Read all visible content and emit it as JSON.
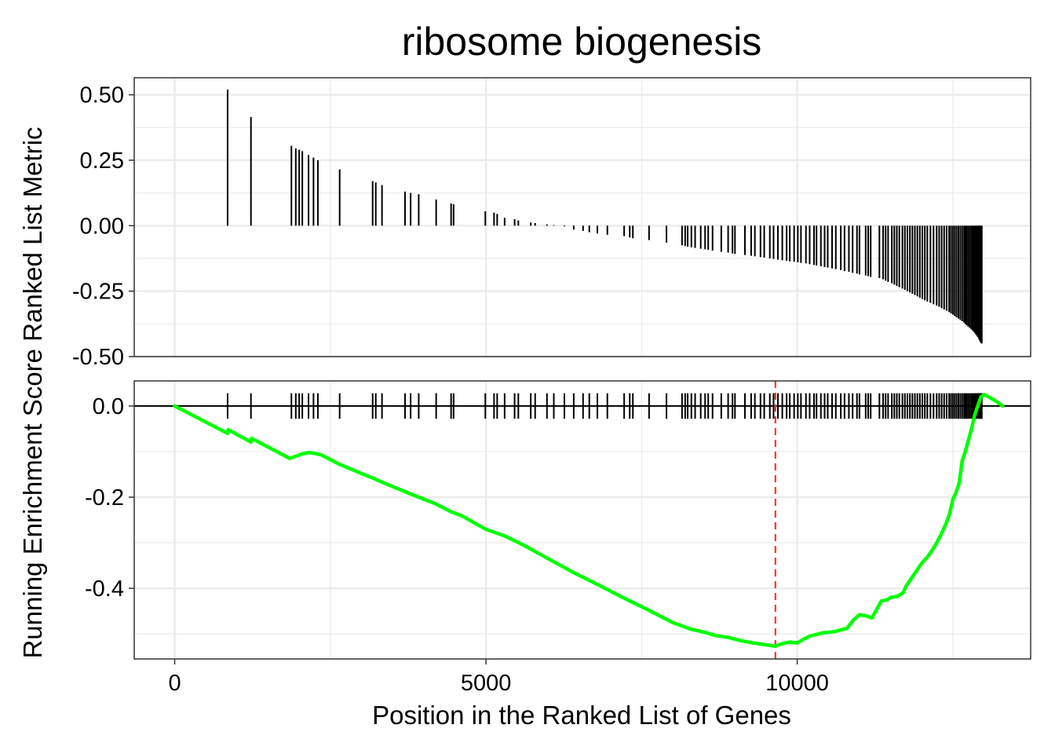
{
  "chart_data": {
    "type": "line",
    "title": "ribosome biogenesis",
    "xlabel": "Position in the Ranked List of Genes",
    "ylabel": "Running Enrichment Score Ranked List Metric",
    "grid": true,
    "x_ticks": [
      "0",
      "5000",
      "10000"
    ],
    "x_tick_values": [
      0,
      5000,
      10000
    ],
    "xlim": [
      -650,
      13750
    ],
    "colors": {
      "running_score": "#00ff00",
      "hits": "#000000",
      "peak_line": "#ff3333",
      "grid": "#ebebeb",
      "panel_border": "#333333"
    },
    "panels": [
      {
        "name": "ranked_list_metric",
        "ylim": [
          -0.5,
          0.565
        ],
        "y_ticks": [
          "0.50",
          "0.25",
          "0.00",
          "-0.25",
          "-0.50"
        ],
        "y_tick_values": [
          0.5,
          0.25,
          0.0,
          -0.25,
          -0.5
        ],
        "bars": {
          "x": [
            850,
            1225,
            1875,
            1945,
            2000,
            2050,
            2150,
            2230,
            2300,
            2650,
            3180,
            3230,
            3330,
            3700,
            3790,
            3920,
            4200,
            4440,
            4480,
            4990,
            5130,
            5180,
            5300,
            5460,
            5520,
            5720,
            5790,
            5980,
            6090,
            6260,
            6410,
            6560,
            6660,
            6790,
            6950,
            7220,
            7310,
            7360,
            7620,
            7900,
            8150,
            8200,
            8240,
            8300,
            8360,
            8450,
            8520,
            8570,
            8640,
            8780,
            8890,
            8960,
            9000,
            9160,
            9260,
            9320,
            9410,
            9470,
            9560,
            9620,
            9690,
            9760,
            9830,
            9880,
            9950,
            10010,
            10060,
            10140,
            10200,
            10270,
            10310,
            10380,
            10440,
            10490,
            10560,
            10620,
            10700,
            10760,
            10830,
            10890,
            10960,
            11000,
            11100,
            11140,
            11180,
            11320,
            11380,
            11420,
            11460,
            11520,
            11560,
            11600,
            11640,
            11690,
            11730,
            11770,
            11810,
            11850,
            11890,
            11930,
            11970,
            12010,
            12050,
            12090,
            12140,
            12190,
            12240,
            12280,
            12320,
            12360,
            12400,
            12440,
            12470,
            12500,
            12530,
            12560,
            12590,
            12620,
            12650,
            12680,
            12700,
            12720,
            12745,
            12770,
            12795,
            12815,
            12835,
            12855,
            12870,
            12885,
            12900,
            12915,
            12925,
            12935,
            12945,
            12955,
            12965
          ],
          "values": [
            0.52,
            0.415,
            0.305,
            0.295,
            0.29,
            0.285,
            0.27,
            0.26,
            0.25,
            0.215,
            0.17,
            0.165,
            0.155,
            0.13,
            0.125,
            0.12,
            0.1,
            0.085,
            0.082,
            0.055,
            0.05,
            0.045,
            0.03,
            0.025,
            0.02,
            0.012,
            0.01,
            0.005,
            0.002,
            -0.003,
            -0.015,
            -0.02,
            -0.025,
            -0.03,
            -0.035,
            -0.04,
            -0.045,
            -0.048,
            -0.055,
            -0.065,
            -0.075,
            -0.078,
            -0.08,
            -0.083,
            -0.085,
            -0.088,
            -0.09,
            -0.092,
            -0.095,
            -0.1,
            -0.103,
            -0.106,
            -0.108,
            -0.112,
            -0.115,
            -0.117,
            -0.12,
            -0.122,
            -0.125,
            -0.127,
            -0.13,
            -0.132,
            -0.134,
            -0.136,
            -0.138,
            -0.14,
            -0.142,
            -0.144,
            -0.147,
            -0.15,
            -0.152,
            -0.155,
            -0.158,
            -0.16,
            -0.163,
            -0.166,
            -0.17,
            -0.173,
            -0.176,
            -0.18,
            -0.183,
            -0.186,
            -0.19,
            -0.193,
            -0.196,
            -0.2,
            -0.205,
            -0.21,
            -0.215,
            -0.22,
            -0.225,
            -0.23,
            -0.235,
            -0.24,
            -0.245,
            -0.25,
            -0.255,
            -0.26,
            -0.265,
            -0.27,
            -0.275,
            -0.28,
            -0.285,
            -0.29,
            -0.295,
            -0.3,
            -0.305,
            -0.31,
            -0.315,
            -0.32,
            -0.325,
            -0.33,
            -0.335,
            -0.34,
            -0.345,
            -0.35,
            -0.355,
            -0.36,
            -0.365,
            -0.37,
            -0.375,
            -0.38,
            -0.385,
            -0.39,
            -0.395,
            -0.4,
            -0.405,
            -0.41,
            -0.415,
            -0.42,
            -0.425,
            -0.43,
            -0.435,
            -0.44,
            -0.445,
            -0.448,
            -0.45
          ]
        }
      },
      {
        "name": "running_enrichment_score",
        "ylim": [
          -0.555,
          0.055
        ],
        "y_ticks": [
          "0.0",
          "-0.2",
          "-0.4"
        ],
        "y_tick_values": [
          0.0,
          -0.2,
          -0.4
        ],
        "peak_x": 9650,
        "series": [
          {
            "x": [
              0,
              850,
              860,
              1225,
              1235,
              1850,
              1950,
              2050,
              2150,
              2250,
              2350,
              2650,
              3000,
              3180,
              3330,
              3700,
              3920,
              4200,
              4440,
              4600,
              4990,
              5300,
              5600,
              6000,
              6400,
              6800,
              7200,
              7600,
              8000,
              8300,
              8500,
              8700,
              8900,
              9100,
              9300,
              9450,
              9600,
              9650,
              9700,
              9800,
              9900,
              10000,
              10100,
              10200,
              10400,
              10600,
              10800,
              10900,
              11000,
              11100,
              11200,
              11350,
              11450,
              11500,
              11600,
              11700,
              11750,
              11800,
              11900,
              12000,
              12100,
              12200,
              12300,
              12400,
              12450,
              12500,
              12550,
              12600,
              12650,
              12700,
              12750,
              12800,
              12850,
              12900,
              12950,
              13000,
              13050,
              13100,
              13200,
              13300
            ],
            "y": [
              0.0,
              -0.06,
              -0.052,
              -0.079,
              -0.071,
              -0.115,
              -0.11,
              -0.105,
              -0.102,
              -0.104,
              -0.107,
              -0.128,
              -0.148,
              -0.158,
              -0.167,
              -0.188,
              -0.2,
              -0.215,
              -0.232,
              -0.24,
              -0.27,
              -0.285,
              -0.305,
              -0.335,
              -0.365,
              -0.392,
              -0.42,
              -0.447,
              -0.475,
              -0.49,
              -0.496,
              -0.504,
              -0.508,
              -0.515,
              -0.52,
              -0.523,
              -0.526,
              -0.527,
              -0.524,
              -0.52,
              -0.518,
              -0.52,
              -0.512,
              -0.505,
              -0.498,
              -0.495,
              -0.488,
              -0.47,
              -0.458,
              -0.46,
              -0.465,
              -0.428,
              -0.425,
              -0.42,
              -0.418,
              -0.41,
              -0.395,
              -0.385,
              -0.365,
              -0.345,
              -0.33,
              -0.31,
              -0.285,
              -0.255,
              -0.235,
              -0.205,
              -0.19,
              -0.17,
              -0.12,
              -0.1,
              -0.075,
              -0.05,
              -0.02,
              0.0,
              0.02,
              0.025,
              0.022,
              0.018,
              0.01,
              0.0
            ]
          }
        ],
        "hits_x": [
          850,
          1225,
          1875,
          1945,
          2000,
          2050,
          2150,
          2230,
          2300,
          2650,
          3180,
          3230,
          3330,
          3700,
          3790,
          3920,
          4200,
          4440,
          4480,
          4990,
          5130,
          5180,
          5300,
          5460,
          5520,
          5720,
          5790,
          5980,
          6090,
          6260,
          6410,
          6560,
          6660,
          6790,
          6950,
          7220,
          7310,
          7360,
          7620,
          7900,
          8150,
          8200,
          8240,
          8300,
          8360,
          8450,
          8520,
          8570,
          8640,
          8780,
          8890,
          8960,
          9000,
          9160,
          9260,
          9320,
          9410,
          9470,
          9560,
          9620,
          9690,
          9760,
          9830,
          9880,
          9950,
          10010,
          10060,
          10140,
          10200,
          10270,
          10310,
          10380,
          10440,
          10490,
          10560,
          10620,
          10700,
          10760,
          10830,
          10890,
          10960,
          11000,
          11100,
          11140,
          11180,
          11320,
          11380,
          11420,
          11460,
          11520,
          11560,
          11600,
          11640,
          11690,
          11730,
          11770,
          11810,
          11850,
          11890,
          11930,
          11970,
          12010,
          12050,
          12090,
          12140,
          12190,
          12240,
          12280,
          12320,
          12360,
          12400,
          12440,
          12470,
          12500,
          12530,
          12560,
          12590,
          12620,
          12650,
          12680,
          12700,
          12720,
          12745,
          12770,
          12795,
          12815,
          12835,
          12855,
          12870,
          12885,
          12900,
          12915,
          12925,
          12935,
          12945,
          12955,
          12965
        ]
      }
    ]
  }
}
